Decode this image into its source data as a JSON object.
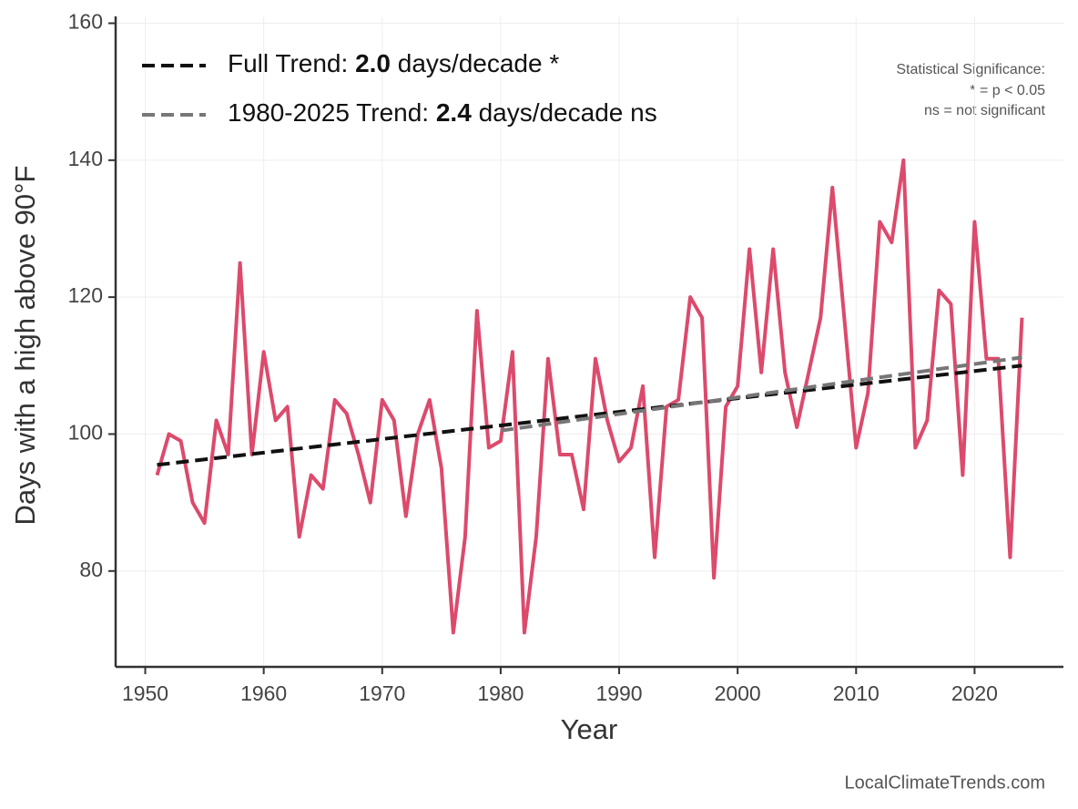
{
  "chart_data": {
    "type": "line",
    "x_label": "Year",
    "y_label": "Days with a high above 90°F",
    "note": [
      "Statistical Significance:",
      "* = p < 0.05",
      "ns = not significant"
    ],
    "source": "LocalClimateTrends.com",
    "x": [
      1951,
      1952,
      1953,
      1954,
      1955,
      1956,
      1957,
      1958,
      1959,
      1960,
      1961,
      1962,
      1963,
      1964,
      1965,
      1966,
      1967,
      1968,
      1969,
      1970,
      1971,
      1972,
      1973,
      1974,
      1975,
      1976,
      1977,
      1978,
      1979,
      1980,
      1981,
      1982,
      1983,
      1984,
      1985,
      1986,
      1987,
      1988,
      1989,
      1990,
      1991,
      1992,
      1993,
      1994,
      1995,
      1996,
      1997,
      1998,
      1999,
      2000,
      2001,
      2002,
      2003,
      2004,
      2005,
      2006,
      2007,
      2008,
      2009,
      2010,
      2011,
      2012,
      2013,
      2014,
      2015,
      2016,
      2017,
      2018,
      2019,
      2020,
      2021,
      2022,
      2023,
      2024
    ],
    "series": [
      {
        "color": "#dc4a6c",
        "values": [
          94,
          100,
          99,
          90,
          87,
          102,
          97,
          125,
          97,
          112,
          102,
          104,
          85,
          94,
          92,
          105,
          103,
          97,
          90,
          105,
          102,
          88,
          100,
          105,
          95,
          71,
          85,
          118,
          98,
          99,
          112,
          71,
          85,
          111,
          97,
          97,
          89,
          111,
          102,
          96,
          98,
          107,
          82,
          104,
          105,
          120,
          117,
          79,
          104,
          107,
          127,
          109,
          127,
          109,
          101,
          109,
          117,
          136,
          117,
          98,
          106,
          131,
          128,
          140,
          98,
          102,
          121,
          119,
          94,
          131,
          111,
          111,
          82,
          117
        ]
      }
    ],
    "trends": [
      {
        "label_start": "Full Trend:",
        "slope": "2.0",
        "label_end": "days/decade *",
        "color": "#111111",
        "x": [
          1951,
          2024
        ],
        "values": [
          95.5,
          110
        ]
      },
      {
        "label_start": "1980-2025 Trend:",
        "slope": "2.4",
        "label_end": "days/decade ns",
        "color": "#777777",
        "x": [
          1980,
          2024
        ],
        "values": [
          100.5,
          111.2
        ]
      }
    ],
    "xlim": [
      1947.5,
      2027.5
    ],
    "ylim": [
      66,
      161
    ],
    "xticks": [
      1950,
      1960,
      1970,
      1980,
      1990,
      2000,
      2010,
      2020
    ],
    "yticks": [
      80,
      100,
      120,
      140,
      160
    ],
    "grid": true
  }
}
